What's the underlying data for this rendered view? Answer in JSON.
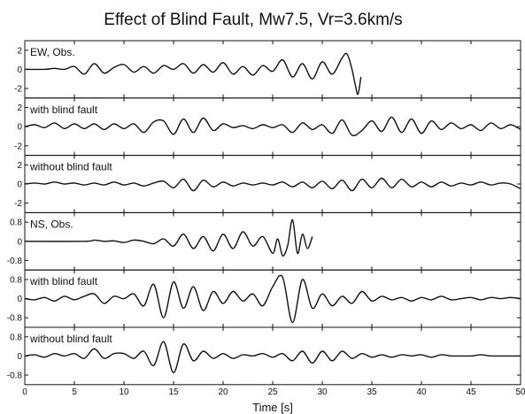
{
  "chart_data": {
    "type": "line",
    "title": "Effect of Blind Fault, Mw7.5, Vr=3.6km/s",
    "xlabel": "Time [s]",
    "ylabel": "",
    "xlim": [
      0,
      50
    ],
    "x_ticks": [
      0,
      5,
      10,
      15,
      20,
      25,
      30,
      35,
      40,
      45,
      50
    ],
    "grid": false,
    "color": "#111111",
    "panels": [
      {
        "label": "EW, Obs.",
        "ylim": [
          -3,
          3
        ],
        "y_ticks": [
          2,
          0,
          -2
        ],
        "x": [
          0,
          2,
          3,
          4,
          5,
          6,
          7,
          8,
          9,
          10,
          11,
          12,
          13,
          14,
          15,
          16,
          17,
          18,
          19,
          20,
          21,
          22,
          23,
          24,
          25,
          26,
          27,
          28,
          29,
          30,
          31,
          32,
          32.5,
          33,
          33.3,
          33.6,
          33.9
        ],
        "y": [
          0,
          0,
          0.1,
          0,
          0.3,
          -0.5,
          0.6,
          -0.4,
          0.2,
          0.5,
          -0.3,
          0.3,
          -0.4,
          0.4,
          0,
          0.6,
          -0.4,
          0.5,
          -0.3,
          0.7,
          -0.5,
          0.3,
          -0.6,
          0.4,
          -0.2,
          1.0,
          -0.8,
          0.6,
          -1.0,
          0.8,
          -0.5,
          1.2,
          1.6,
          0,
          -1.5,
          -2.6,
          -0.8
        ]
      },
      {
        "label": "with blind fault",
        "ylim": [
          -3,
          3
        ],
        "y_ticks": [
          2,
          0,
          -2
        ],
        "x": [
          0,
          1,
          2,
          3,
          4,
          5,
          6,
          7,
          8,
          9,
          10,
          11,
          12,
          13,
          14,
          15,
          16,
          17,
          18,
          19,
          20,
          21,
          22,
          23,
          24,
          25,
          26,
          27,
          28,
          29,
          30,
          31,
          32,
          33,
          34,
          35,
          36,
          37,
          38,
          39,
          40,
          41,
          42,
          43,
          44,
          45,
          46,
          47,
          48,
          49,
          50
        ],
        "y": [
          0,
          0.2,
          -0.1,
          0.4,
          -0.2,
          0.3,
          -0.2,
          0.3,
          -0.3,
          0.3,
          -0.2,
          0.3,
          -0.6,
          0.5,
          0.6,
          -0.8,
          0.8,
          -0.6,
          0.9,
          -0.4,
          0.3,
          -0.1,
          0.1,
          -0.2,
          0.2,
          -0.1,
          0.2,
          -0.6,
          0.4,
          -0.3,
          0.2,
          -0.7,
          0.7,
          -0.9,
          -0.4,
          0.6,
          -0.5,
          1.0,
          -0.6,
          0.8,
          -0.7,
          0.6,
          -0.3,
          0.4,
          -0.2,
          0.2,
          -0.4,
          0.4,
          -0.2,
          0.2,
          -0.3
        ]
      },
      {
        "label": "without blind fault",
        "ylim": [
          -3,
          3
        ],
        "y_ticks": [
          2,
          0,
          -2
        ],
        "x": [
          0,
          1,
          2,
          3,
          4,
          5,
          6,
          7,
          8,
          9,
          10,
          11,
          12,
          13,
          14,
          15,
          16,
          17,
          18,
          19,
          20,
          21,
          22,
          23,
          24,
          25,
          26,
          27,
          28,
          29,
          30,
          31,
          32,
          33,
          34,
          35,
          36,
          37,
          38,
          39,
          40,
          41,
          42,
          43,
          44,
          45,
          46,
          47,
          48,
          49,
          50
        ],
        "y": [
          0,
          0.1,
          0,
          0.2,
          0,
          0.1,
          -0.1,
          0.1,
          -0.1,
          0.2,
          -0.1,
          0.1,
          -0.2,
          0.1,
          0.3,
          -0.4,
          0.5,
          -0.7,
          0.4,
          -0.3,
          0.2,
          -0.2,
          0.1,
          -0.1,
          0.1,
          -0.1,
          0.2,
          -0.3,
          0.2,
          -0.4,
          0.3,
          -0.5,
          0.4,
          -0.7,
          0.5,
          -0.4,
          0.6,
          -0.4,
          0.5,
          -0.3,
          0.2,
          -0.3,
          0.2,
          -0.2,
          0.1,
          -0.1,
          0.2,
          -0.1,
          0.1,
          0,
          -0.5
        ]
      },
      {
        "label": "NS, Obs.",
        "ylim": [
          -1.2,
          1.2
        ],
        "y_ticks": [
          0.8,
          0,
          -0.8
        ],
        "x": [
          0,
          6,
          7,
          8,
          9,
          10,
          11,
          12,
          13,
          14,
          15,
          16,
          17,
          18,
          19,
          20,
          21,
          22,
          23,
          24,
          25,
          25.5,
          26,
          26.5,
          27,
          27.5,
          28,
          28.5,
          29
        ],
        "y": [
          0,
          0,
          0.05,
          0,
          0.02,
          -0.05,
          0.05,
          0,
          -0.1,
          0.1,
          -0.2,
          0.3,
          -0.3,
          0.2,
          -0.4,
          0.3,
          -0.3,
          0.4,
          -0.2,
          0.2,
          -0.5,
          0.1,
          -0.6,
          -0.2,
          0.9,
          -0.5,
          0.3,
          -0.3,
          0.2
        ]
      },
      {
        "label": "with blind fault",
        "ylim": [
          -1.2,
          1.2
        ],
        "y_ticks": [
          0.8,
          0,
          -0.8
        ],
        "x": [
          0,
          1,
          2,
          3,
          4,
          5,
          6,
          7,
          8,
          9,
          10,
          11,
          12,
          13,
          14,
          15,
          16,
          17,
          18,
          19,
          20,
          21,
          22,
          23,
          24,
          25,
          26,
          27,
          28,
          29,
          30,
          31,
          32,
          33,
          34,
          35,
          36,
          37,
          38,
          39,
          40,
          41,
          42,
          43,
          44,
          45,
          46,
          47,
          48,
          49,
          50
        ],
        "y": [
          0,
          -0.05,
          0.05,
          -0.1,
          0.1,
          -0.05,
          0.1,
          0.2,
          -0.2,
          0.1,
          0,
          0.2,
          -0.3,
          0.6,
          -0.8,
          0.7,
          -0.4,
          0.5,
          -0.5,
          0.3,
          -0.2,
          0.3,
          -0.1,
          0.2,
          -0.3,
          0.5,
          0.9,
          -1.0,
          0.8,
          -0.4,
          0.2,
          -0.3,
          0.1,
          -0.2,
          0.3,
          -0.1,
          0.1,
          -0.05,
          0.05,
          -0.1,
          0.05,
          -0.05,
          0.1,
          -0.05,
          0,
          0.05,
          -0.05,
          0.05,
          0,
          0.05,
          0
        ]
      },
      {
        "label": "without blind fault",
        "ylim": [
          -1.2,
          1.2
        ],
        "y_ticks": [
          0.8,
          0,
          -0.8
        ],
        "x": [
          0,
          1,
          2,
          3,
          4,
          5,
          6,
          7,
          8,
          9,
          10,
          11,
          12,
          13,
          14,
          15,
          16,
          17,
          18,
          19,
          20,
          21,
          22,
          23,
          24,
          25,
          26,
          27,
          28,
          29,
          30,
          31,
          32,
          33,
          34,
          35,
          36,
          37,
          38,
          39,
          40,
          41,
          42,
          43,
          44,
          45,
          46,
          47,
          48,
          49,
          50
        ],
        "y": [
          0,
          0.05,
          -0.05,
          0.1,
          0,
          0.1,
          -0.1,
          0.3,
          -0.1,
          0.1,
          0.1,
          -0.1,
          0.2,
          -0.4,
          0.6,
          -0.7,
          0.5,
          -0.2,
          0.2,
          -0.1,
          0.1,
          -0.1,
          0.05,
          0,
          0.1,
          -0.05,
          0.1,
          -0.2,
          0.2,
          -0.3,
          0.2,
          -0.2,
          0.2,
          -0.1,
          0.1,
          -0.05,
          0.05,
          -0.05,
          0.05,
          0,
          0.05,
          -0.05,
          0.05,
          0,
          0,
          0,
          0.05,
          0,
          0,
          0,
          0
        ]
      }
    ]
  }
}
